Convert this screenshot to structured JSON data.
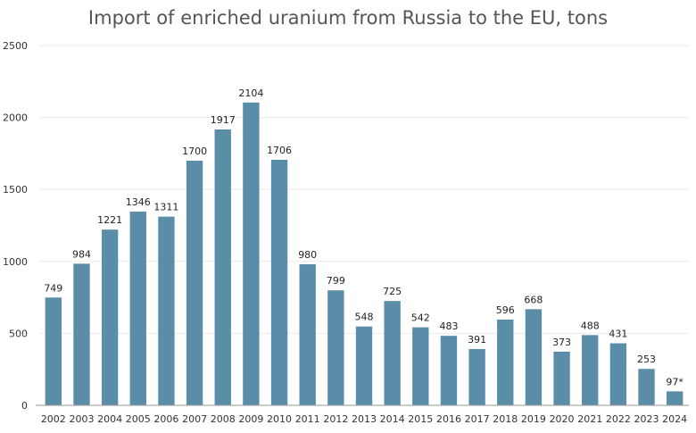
{
  "chart_data": {
    "type": "bar",
    "title": "Import of enriched uranium from Russia to the EU, tons",
    "xlabel": "",
    "ylabel": "",
    "ylim": [
      0,
      2500
    ],
    "yticks": [
      "0",
      "500",
      "1000",
      "1500",
      "2000",
      "2500"
    ],
    "grid": true,
    "bar_color": "#5a8ea8",
    "categories": [
      "2002",
      "2003",
      "2004",
      "2005",
      "2006",
      "2007",
      "2008",
      "2009",
      "2010",
      "2011",
      "2012",
      "2013",
      "2014",
      "2015",
      "2016",
      "2017",
      "2018",
      "2019",
      "2020",
      "2021",
      "2022",
      "2023",
      "2024"
    ],
    "values": [
      749,
      984,
      1221,
      1346,
      1311,
      1700,
      1917,
      2104,
      1706,
      980,
      799,
      548,
      725,
      542,
      483,
      391,
      596,
      668,
      373,
      488,
      431,
      253,
      97
    ],
    "data_labels": [
      "749",
      "984",
      "1221",
      "1346",
      "1311",
      "1700",
      "1917",
      "2104",
      "1706",
      "980",
      "799",
      "548",
      "725",
      "542",
      "483",
      "391",
      "596",
      "668",
      "373",
      "488",
      "431",
      "253",
      "97*"
    ]
  }
}
